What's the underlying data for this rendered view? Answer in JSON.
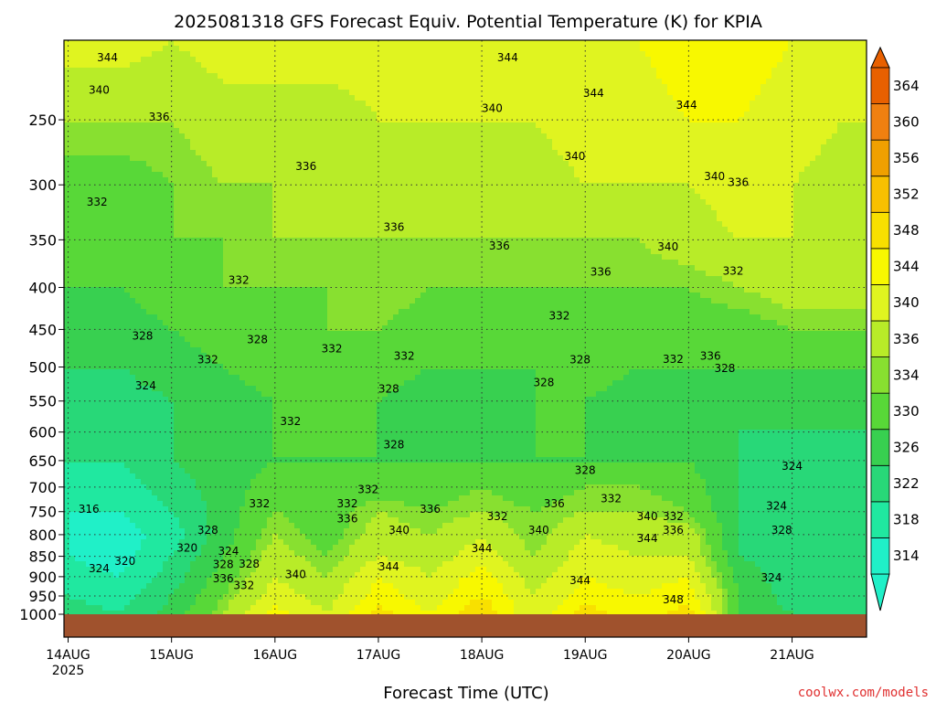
{
  "chart_data": {
    "type": "heatmap",
    "title": "2025081318 GFS Forecast Equiv. Potential Temperature (K) for KPIA",
    "xlabel": "Forecast Time (UTC)",
    "ylabel": "",
    "credit": "coolwx.com/models",
    "x_ticks": [
      "14AUG",
      "15AUG",
      "16AUG",
      "17AUG",
      "18AUG",
      "19AUG",
      "20AUG",
      "21AUG"
    ],
    "x_tick_sub": "2025",
    "y_ticks": [
      250,
      300,
      350,
      400,
      450,
      500,
      550,
      600,
      650,
      700,
      750,
      800,
      850,
      900,
      950,
      1000
    ],
    "y_scale": "log",
    "ylim": [
      1000,
      200
    ],
    "grid": true,
    "colorbar": {
      "values": [
        314,
        318,
        322,
        326,
        330,
        334,
        336,
        340,
        344,
        348,
        352,
        356,
        360,
        364
      ],
      "colors": [
        "#20f0c8",
        "#20e8a0",
        "#28d878",
        "#38d050",
        "#58d838",
        "#88e030",
        "#b8ec28",
        "#e0f420",
        "#f8f800",
        "#f8e000",
        "#f8c000",
        "#f0a000",
        "#f08010",
        "#e86000"
      ],
      "extend": "both"
    },
    "surface_color": "#a0522d",
    "levels": [
      1000,
      950,
      900,
      850,
      800,
      750,
      700,
      650,
      600,
      550,
      500,
      450,
      400,
      350,
      300,
      250,
      200
    ],
    "times": [
      0,
      0.5,
      1,
      1.5,
      2,
      2.5,
      3,
      3.5,
      4,
      4.5,
      5,
      5.5,
      6,
      6.5,
      7,
      7.5
    ],
    "values": [
      [
        324,
        322,
        328,
        336,
        346,
        340,
        350,
        344,
        352,
        340,
        350,
        346,
        350,
        330,
        326,
        326
      ],
      [
        322,
        320,
        326,
        334,
        342,
        338,
        346,
        342,
        348,
        340,
        346,
        344,
        346,
        330,
        324,
        324
      ],
      [
        320,
        318,
        324,
        332,
        340,
        336,
        344,
        340,
        346,
        338,
        344,
        342,
        344,
        328,
        324,
        324
      ],
      [
        318,
        316,
        322,
        330,
        338,
        334,
        340,
        338,
        342,
        336,
        342,
        340,
        340,
        326,
        324,
        324
      ],
      [
        318,
        316,
        320,
        328,
        336,
        332,
        338,
        336,
        340,
        334,
        340,
        338,
        338,
        326,
        324,
        324
      ],
      [
        318,
        318,
        322,
        328,
        334,
        332,
        336,
        334,
        336,
        334,
        336,
        336,
        334,
        326,
        324,
        324
      ],
      [
        320,
        320,
        324,
        328,
        332,
        330,
        332,
        332,
        334,
        332,
        334,
        334,
        332,
        326,
        324,
        324
      ],
      [
        322,
        322,
        326,
        328,
        330,
        330,
        330,
        330,
        330,
        330,
        330,
        330,
        330,
        326,
        324,
        324
      ],
      [
        324,
        324,
        326,
        328,
        330,
        330,
        330,
        328,
        328,
        330,
        330,
        328,
        328,
        326,
        326,
        326
      ],
      [
        324,
        324,
        326,
        328,
        330,
        330,
        330,
        328,
        328,
        330,
        330,
        328,
        328,
        328,
        328,
        328
      ],
      [
        326,
        326,
        328,
        330,
        332,
        332,
        332,
        330,
        330,
        330,
        332,
        330,
        330,
        330,
        330,
        330
      ],
      [
        328,
        328,
        330,
        332,
        332,
        334,
        334,
        332,
        332,
        332,
        332,
        332,
        332,
        332,
        334,
        334
      ],
      [
        330,
        330,
        332,
        334,
        334,
        334,
        336,
        334,
        334,
        334,
        334,
        334,
        334,
        336,
        338,
        338
      ],
      [
        332,
        332,
        334,
        334,
        336,
        336,
        336,
        336,
        336,
        336,
        336,
        336,
        338,
        340,
        340,
        340
      ],
      [
        332,
        332,
        334,
        336,
        336,
        338,
        338,
        338,
        338,
        338,
        340,
        340,
        340,
        342,
        340,
        338
      ],
      [
        336,
        336,
        336,
        338,
        338,
        338,
        340,
        340,
        340,
        340,
        342,
        342,
        344,
        344,
        342,
        340
      ],
      [
        342,
        342,
        340,
        342,
        342,
        342,
        342,
        344,
        344,
        342,
        344,
        344,
        346,
        346,
        344,
        344
      ]
    ],
    "contour_labels": [
      {
        "text": "344",
        "t": 0.38,
        "p": 210
      },
      {
        "text": "340",
        "t": 0.3,
        "p": 230
      },
      {
        "text": "336",
        "t": 0.88,
        "p": 248
      },
      {
        "text": "332",
        "t": 0.28,
        "p": 315
      },
      {
        "text": "344",
        "t": 4.25,
        "p": 210
      },
      {
        "text": "340",
        "t": 4.1,
        "p": 242
      },
      {
        "text": "344",
        "t": 5.08,
        "p": 232
      },
      {
        "text": "344",
        "t": 5.98,
        "p": 240
      },
      {
        "text": "340",
        "t": 4.9,
        "p": 277
      },
      {
        "text": "336",
        "t": 2.3,
        "p": 285
      },
      {
        "text": "340",
        "t": 6.25,
        "p": 293
      },
      {
        "text": "336",
        "t": 6.48,
        "p": 298
      },
      {
        "text": "336",
        "t": 3.15,
        "p": 338
      },
      {
        "text": "336",
        "t": 4.17,
        "p": 356
      },
      {
        "text": "340",
        "t": 5.8,
        "p": 357
      },
      {
        "text": "336",
        "t": 5.15,
        "p": 383
      },
      {
        "text": "332",
        "t": 1.65,
        "p": 392
      },
      {
        "text": "332",
        "t": 6.43,
        "p": 382
      },
      {
        "text": "332",
        "t": 4.75,
        "p": 433
      },
      {
        "text": "328",
        "t": 0.72,
        "p": 458
      },
      {
        "text": "328",
        "t": 1.83,
        "p": 463
      },
      {
        "text": "332",
        "t": 2.55,
        "p": 475
      },
      {
        "text": "332",
        "t": 1.35,
        "p": 490
      },
      {
        "text": "332",
        "t": 3.25,
        "p": 485
      },
      {
        "text": "328",
        "t": 4.95,
        "p": 490
      },
      {
        "text": "332",
        "t": 5.85,
        "p": 489
      },
      {
        "text": "336",
        "t": 6.21,
        "p": 485
      },
      {
        "text": "328",
        "t": 6.35,
        "p": 502
      },
      {
        "text": "324",
        "t": 0.75,
        "p": 527
      },
      {
        "text": "328",
        "t": 3.1,
        "p": 532
      },
      {
        "text": "328",
        "t": 4.6,
        "p": 522
      },
      {
        "text": "332",
        "t": 2.15,
        "p": 582
      },
      {
        "text": "328",
        "t": 3.15,
        "p": 622
      },
      {
        "text": "324",
        "t": 7.0,
        "p": 660
      },
      {
        "text": "328",
        "t": 5.0,
        "p": 668
      },
      {
        "text": "332",
        "t": 2.9,
        "p": 705
      },
      {
        "text": "332",
        "t": 2.7,
        "p": 733
      },
      {
        "text": "332",
        "t": 1.85,
        "p": 733
      },
      {
        "text": "336",
        "t": 4.7,
        "p": 733
      },
      {
        "text": "332",
        "t": 5.25,
        "p": 723
      },
      {
        "text": "336",
        "t": 3.5,
        "p": 745
      },
      {
        "text": "336",
        "t": 2.7,
        "p": 765
      },
      {
        "text": "332",
        "t": 4.15,
        "p": 760
      },
      {
        "text": "340",
        "t": 5.6,
        "p": 760
      },
      {
        "text": "332",
        "t": 5.85,
        "p": 760
      },
      {
        "text": "324",
        "t": 6.85,
        "p": 738
      },
      {
        "text": "316",
        "t": 0.2,
        "p": 745
      },
      {
        "text": "340",
        "t": 3.2,
        "p": 790
      },
      {
        "text": "336",
        "t": 5.85,
        "p": 790
      },
      {
        "text": "340",
        "t": 4.55,
        "p": 790
      },
      {
        "text": "328",
        "t": 1.35,
        "p": 790
      },
      {
        "text": "328",
        "t": 6.9,
        "p": 790
      },
      {
        "text": "344",
        "t": 5.6,
        "p": 808
      },
      {
        "text": "344",
        "t": 4.0,
        "p": 832
      },
      {
        "text": "320",
        "t": 1.15,
        "p": 830
      },
      {
        "text": "324",
        "t": 1.55,
        "p": 838
      },
      {
        "text": "320",
        "t": 0.55,
        "p": 862
      },
      {
        "text": "328",
        "t": 1.5,
        "p": 870
      },
      {
        "text": "328",
        "t": 1.75,
        "p": 868
      },
      {
        "text": "324",
        "t": 0.3,
        "p": 880
      },
      {
        "text": "344",
        "t": 3.1,
        "p": 875
      },
      {
        "text": "340",
        "t": 2.2,
        "p": 895
      },
      {
        "text": "336",
        "t": 1.5,
        "p": 905
      },
      {
        "text": "324",
        "t": 6.8,
        "p": 902
      },
      {
        "text": "344",
        "t": 4.95,
        "p": 910
      },
      {
        "text": "332",
        "t": 1.7,
        "p": 922
      },
      {
        "text": "348",
        "t": 5.85,
        "p": 960
      }
    ]
  }
}
